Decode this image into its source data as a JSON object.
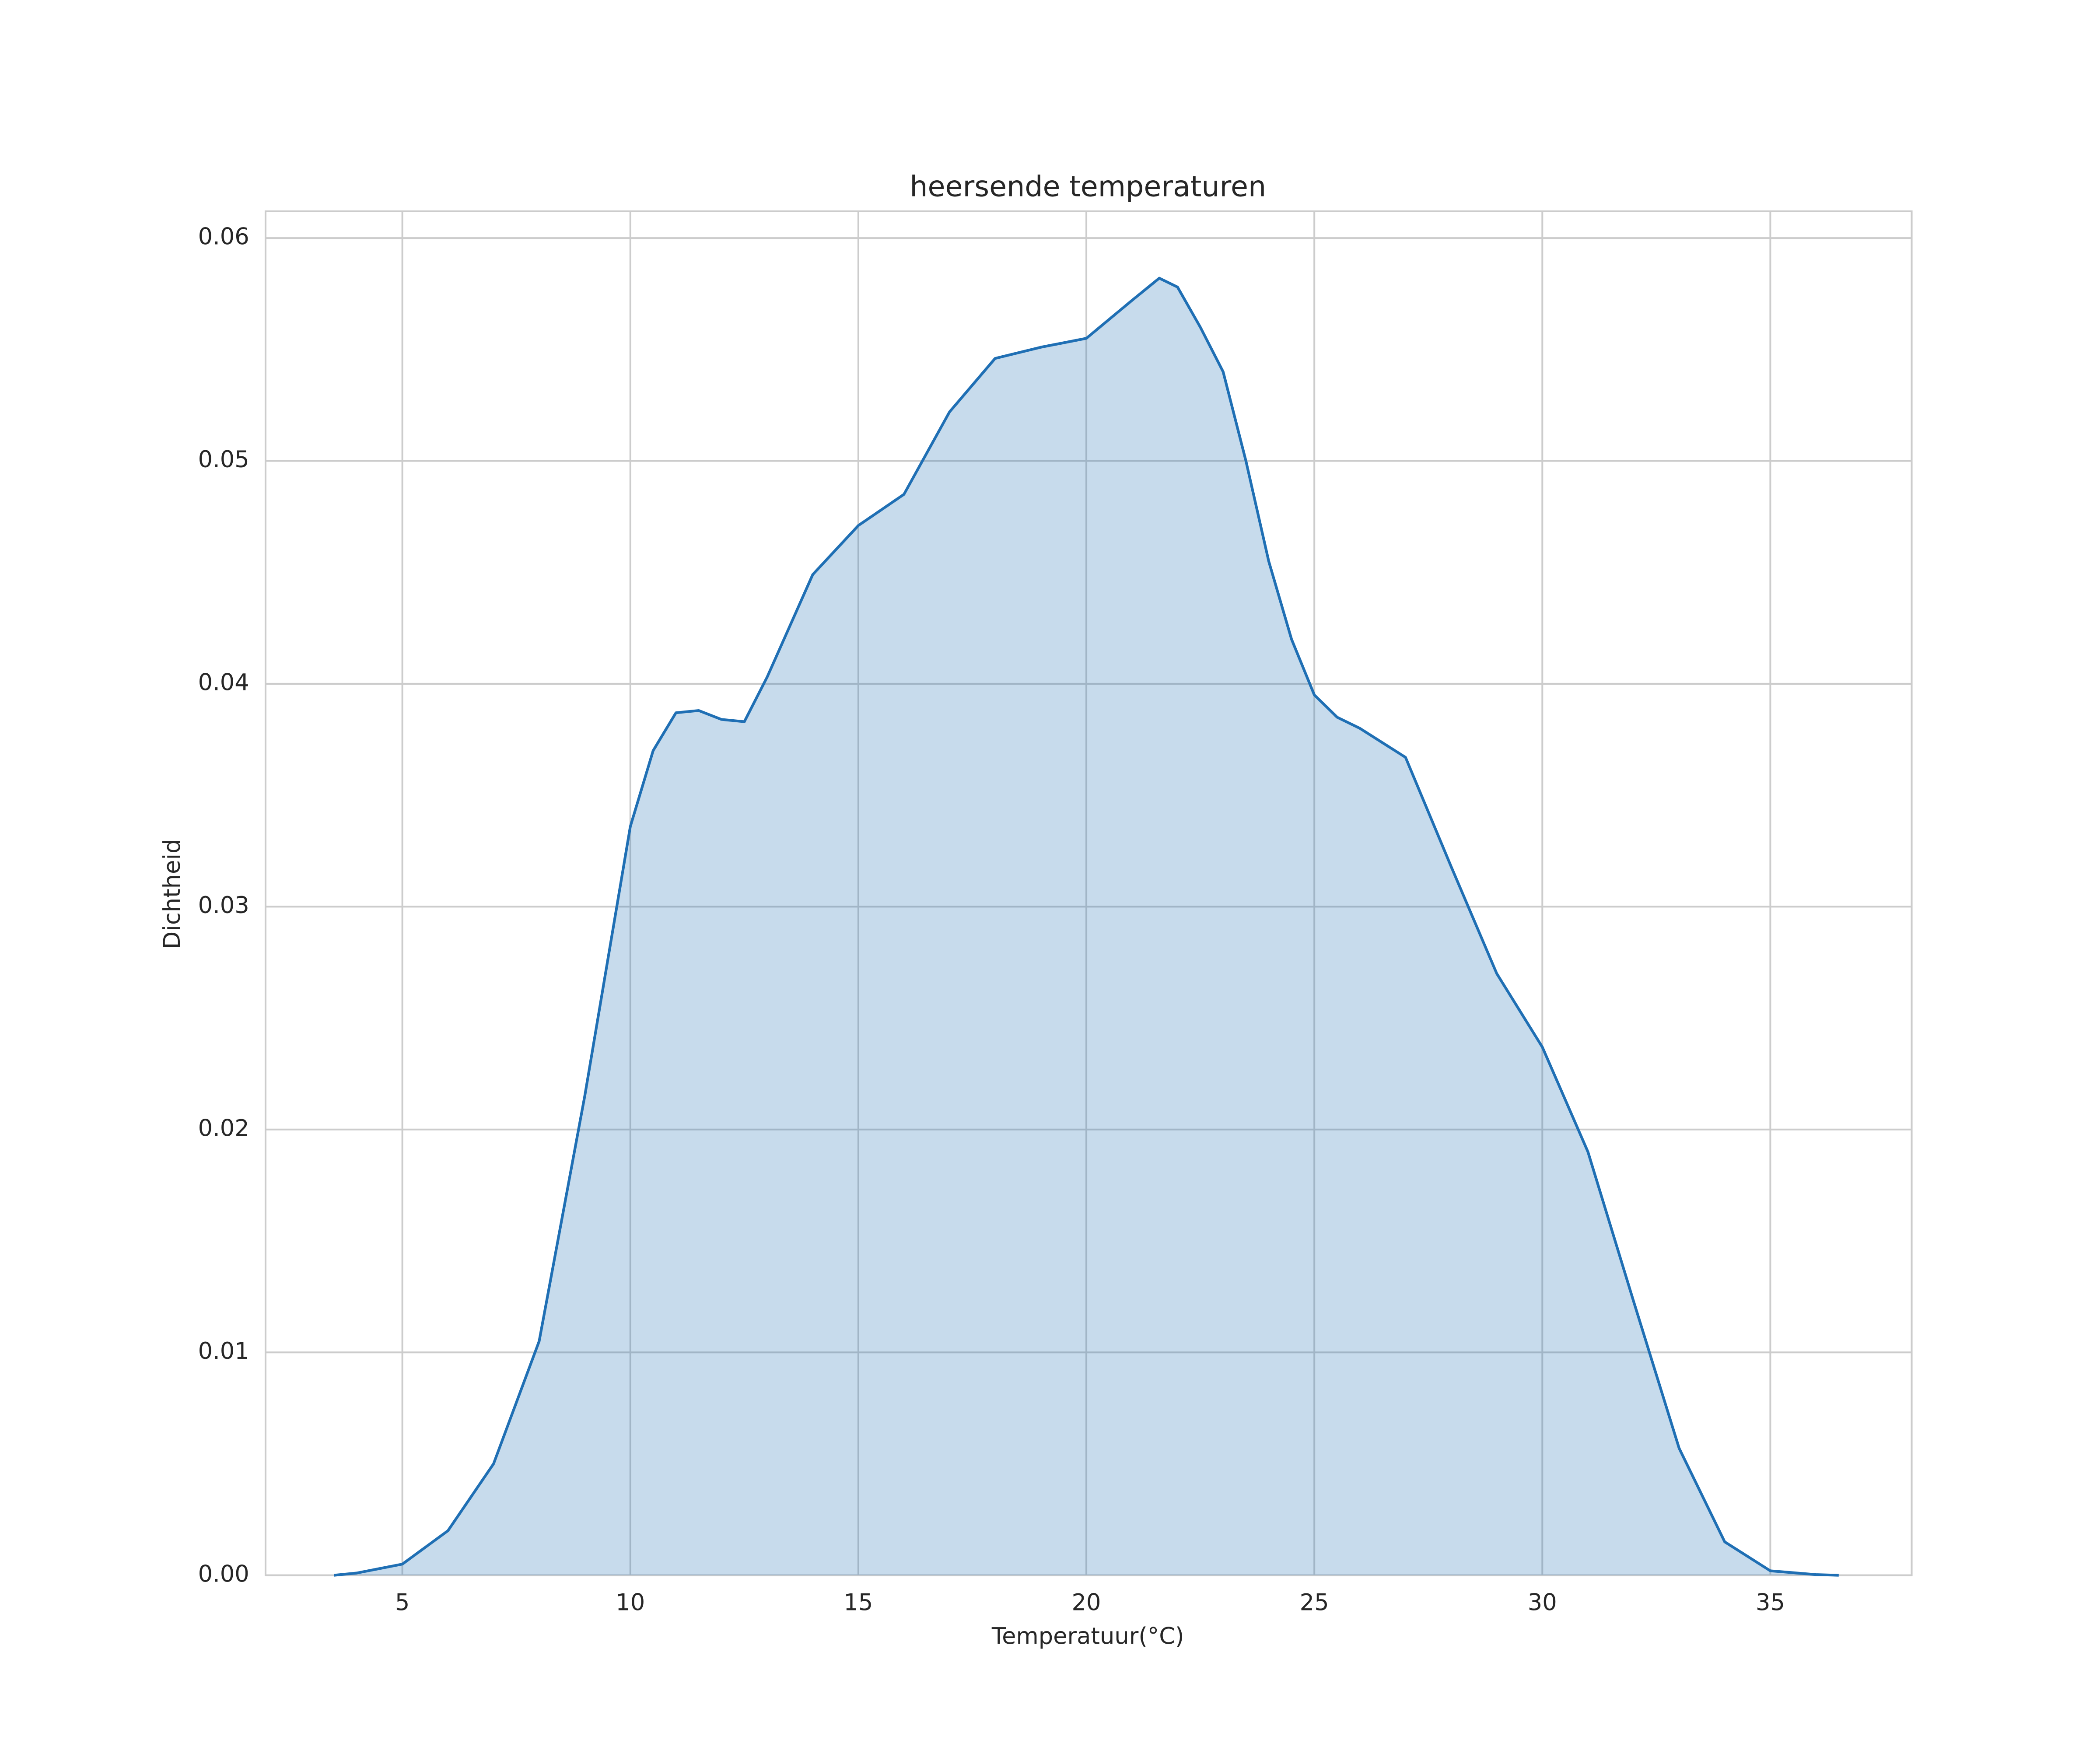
{
  "chart_data": {
    "type": "area",
    "title": "heersende temperaturen",
    "x_label": "Temperatuur(°C)",
    "y_label": "Dichtheid",
    "x": [
      3.5,
      4,
      5,
      6,
      7,
      8,
      9,
      10,
      10.5,
      11,
      11.5,
      12,
      12.5,
      13,
      14,
      15,
      16,
      17,
      18,
      19,
      20,
      21,
      21.6,
      22,
      22.5,
      23,
      23.5,
      24,
      24.5,
      25,
      25.5,
      26,
      27,
      28,
      29,
      30,
      31,
      32,
      33,
      34,
      35,
      36,
      36.5
    ],
    "values": [
      0,
      0.0001,
      0.0005,
      0.002,
      0.005,
      0.0105,
      0.0215,
      0.0336,
      0.037,
      0.0387,
      0.0388,
      0.0384,
      0.0383,
      0.0403,
      0.0449,
      0.0471,
      0.0485,
      0.0522,
      0.0546,
      0.0551,
      0.0555,
      0.0572,
      0.0582,
      0.0578,
      0.056,
      0.054,
      0.05,
      0.0455,
      0.042,
      0.0395,
      0.0385,
      0.038,
      0.0367,
      0.0318,
      0.027,
      0.0237,
      0.019,
      0.0123,
      0.0057,
      0.0015,
      0.0002,
      3e-05,
      0
    ],
    "color": "#1f6fb4",
    "xlim": [
      2.0,
      38.1
    ],
    "xticks": [
      5,
      10,
      15,
      20,
      25,
      30,
      35
    ],
    "ylim": [
      0,
      0.0612
    ],
    "yticks": [
      {
        "value": 0,
        "label": "0.00"
      },
      {
        "value": 0.01,
        "label": "0.01"
      },
      {
        "value": 0.02,
        "label": "0.02"
      },
      {
        "value": 0.03,
        "label": "0.03"
      },
      {
        "value": 0.04,
        "label": "0.04"
      },
      {
        "value": 0.05,
        "label": "0.05"
      },
      {
        "value": 0.06,
        "label": "0.06"
      }
    ],
    "grid": true
  }
}
